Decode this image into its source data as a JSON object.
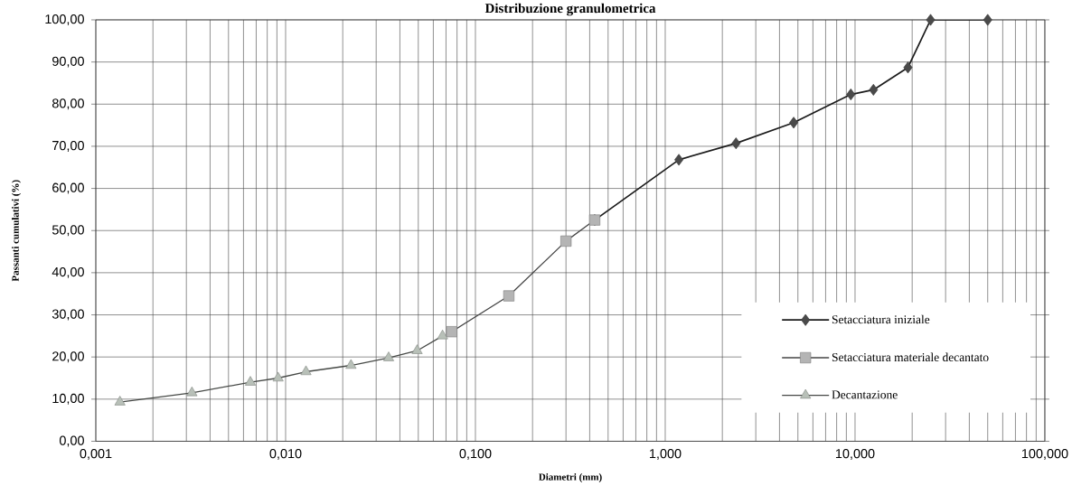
{
  "chart_data": {
    "type": "line",
    "title": "Distribuzione granulometrica",
    "xlabel": "Diametri (mm)",
    "ylabel": "Passanti cumulativi (%)",
    "log": "x",
    "xlim": [
      0.001,
      100
    ],
    "ylim": [
      0,
      100
    ],
    "xticks": [
      {
        "value": 0.001,
        "label": "0,001"
      },
      {
        "value": 0.01,
        "label": "0,010"
      },
      {
        "value": 0.1,
        "label": "0,100"
      },
      {
        "value": 1,
        "label": "1,000"
      },
      {
        "value": 10,
        "label": "10,000"
      },
      {
        "value": 100,
        "label": "100,000"
      }
    ],
    "yticks": [
      {
        "value": 0,
        "label": "0,00"
      },
      {
        "value": 10,
        "label": "10,00"
      },
      {
        "value": 20,
        "label": "20,00"
      },
      {
        "value": 30,
        "label": "30,00"
      },
      {
        "value": 40,
        "label": "40,00"
      },
      {
        "value": 50,
        "label": "50,00"
      },
      {
        "value": 60,
        "label": "60,00"
      },
      {
        "value": 70,
        "label": "70,00"
      },
      {
        "value": 80,
        "label": "80,00"
      },
      {
        "value": 90,
        "label": "90,00"
      },
      {
        "value": 100,
        "label": "100,00"
      }
    ],
    "grid": true,
    "legend": "bottom right",
    "line_style": "solid",
    "series": [
      {
        "name": "Setacciatura iniziale",
        "color": "#4a4a4a",
        "marker": "diamond",
        "x": [
          0.425,
          1.18,
          2.36,
          4.75,
          9.5,
          12.5,
          19,
          25,
          50
        ],
        "values": [
          52.5,
          66.8,
          70.7,
          75.6,
          82.3,
          83.4,
          88.7,
          100,
          100
        ]
      },
      {
        "name": "Setacciatura materiale decantato",
        "color": "#b4b4b4",
        "marker": "square",
        "x": [
          0.075,
          0.15,
          0.3,
          0.425
        ],
        "values": [
          26,
          34.5,
          47.5,
          52.5
        ]
      },
      {
        "name": "Decantazione",
        "color": "#b8c0b8",
        "marker": "triangle",
        "x": [
          0.00134,
          0.00321,
          0.00652,
          0.00913,
          0.0128,
          0.0221,
          0.0349,
          0.0493,
          0.0671
        ],
        "values": [
          9.3,
          11.5,
          14,
          15,
          16.5,
          18,
          19.8,
          21.5,
          25
        ]
      }
    ]
  }
}
